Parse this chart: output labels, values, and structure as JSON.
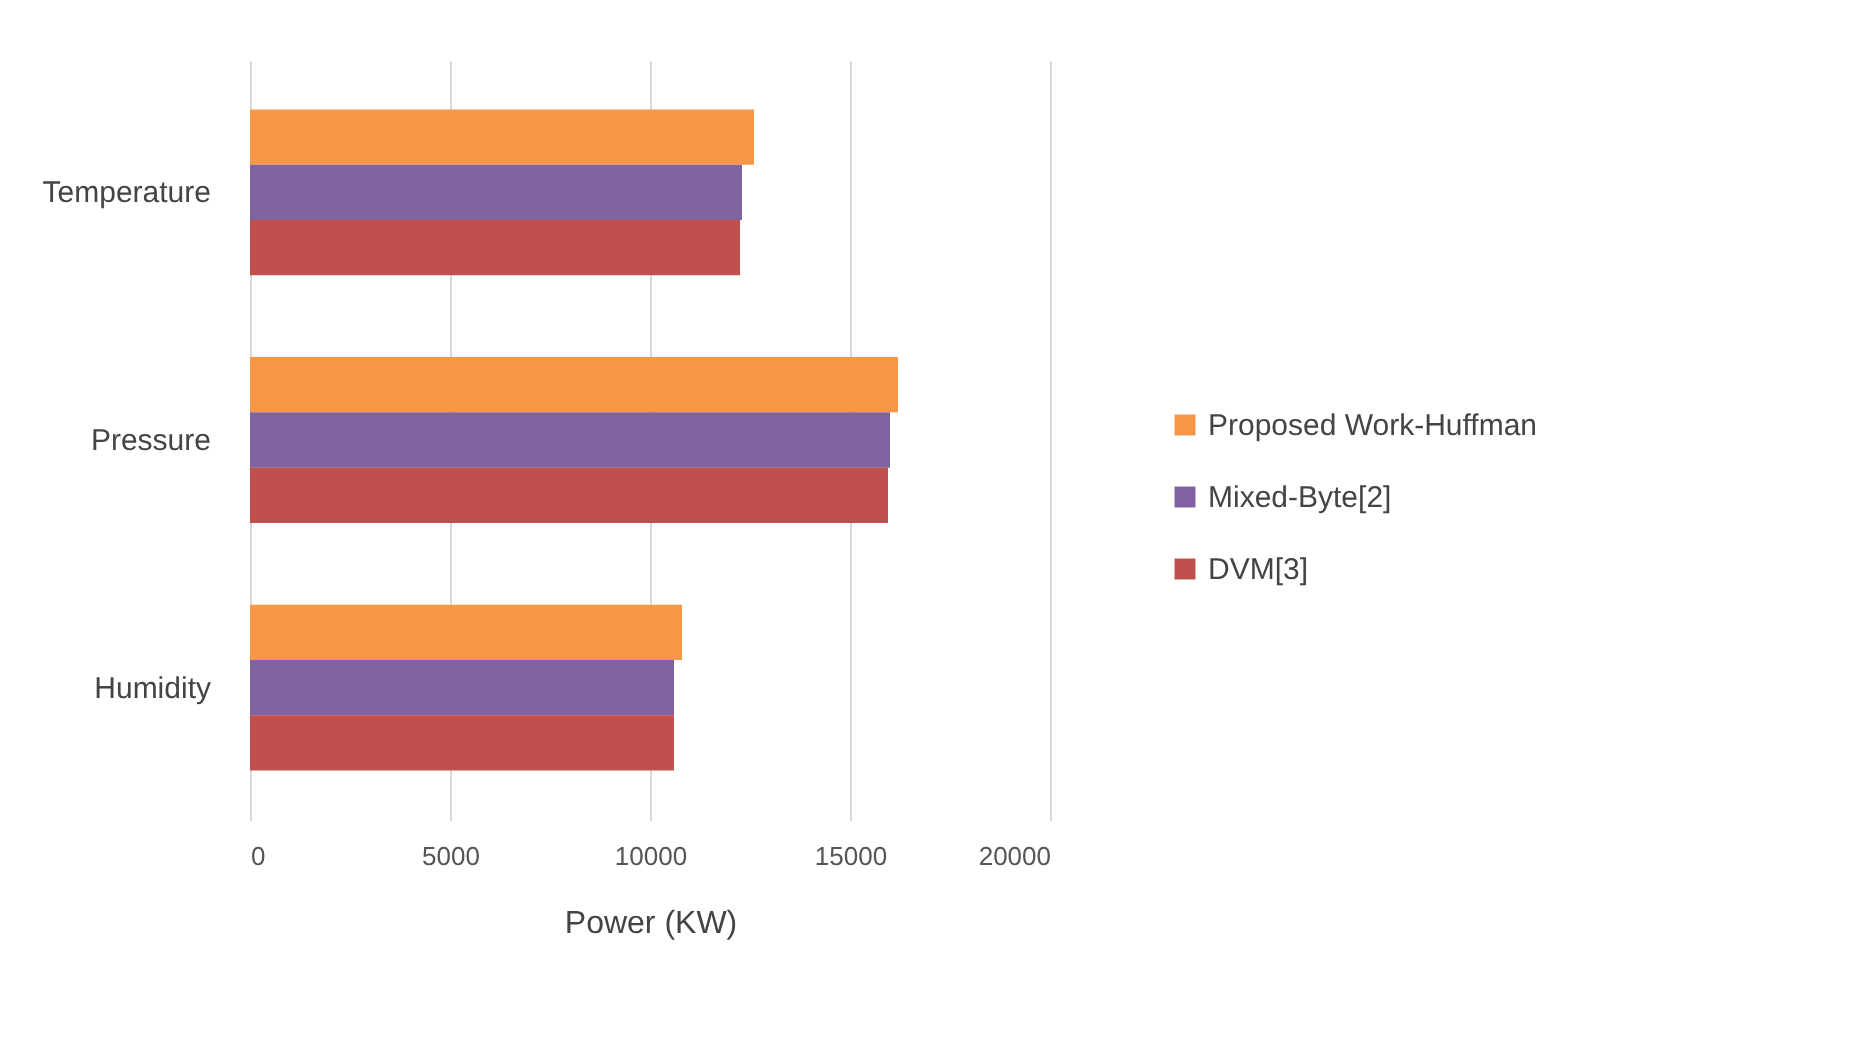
{
  "chart_data": {
    "type": "bar",
    "orientation": "horizontal",
    "xlabel": "Power (KW)",
    "categories": [
      "Temperature",
      "Pressure",
      "Humidity"
    ],
    "series": [
      {
        "name": "Proposed Work-Huffman",
        "color": "#f79646",
        "values": [
          12600,
          16200,
          10800
        ]
      },
      {
        "name": "Mixed-Byte[2]",
        "color": "#8064a2",
        "values": [
          12300,
          16000,
          10600
        ]
      },
      {
        "name": "DVM[3]",
        "color": "#c0504d",
        "values": [
          12250,
          15950,
          10600
        ]
      }
    ],
    "xlim": [
      0,
      20000
    ],
    "xticks": [
      0,
      5000,
      10000,
      15000,
      20000
    ],
    "grid": "x",
    "legend": "right"
  }
}
